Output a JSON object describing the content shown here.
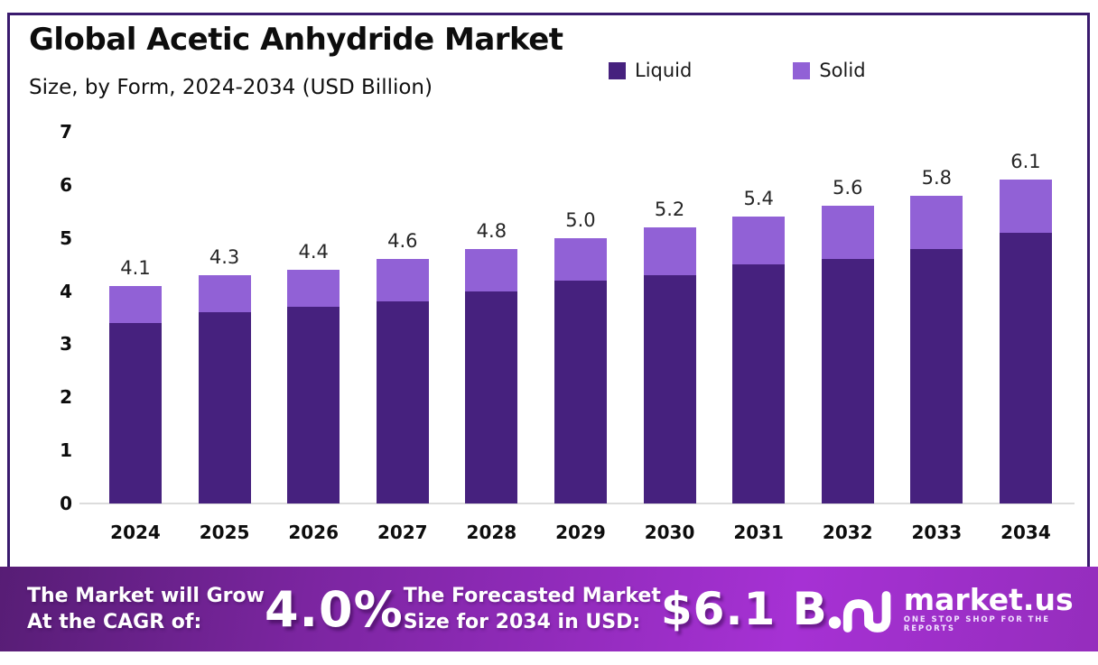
{
  "page": {
    "background": "#ffffff",
    "frame_border_color": "#3a1a6e"
  },
  "header": {
    "title": "Global Acetic Anhydride Market",
    "subtitle": "Size, by Form, 2024-2034 (USD Billion)"
  },
  "legend": [
    {
      "label": "Liquid",
      "color": "#46217e"
    },
    {
      "label": "Solid",
      "color": "#9161d6"
    }
  ],
  "chart_data": {
    "type": "bar",
    "stacked": true,
    "title": "Global Acetic Anhydride Market Size, by Form, 2024-2034 (USD Billion)",
    "xlabel": "",
    "ylabel": "USD Billion",
    "categories": [
      "2024",
      "2025",
      "2026",
      "2027",
      "2028",
      "2029",
      "2030",
      "2031",
      "2032",
      "2033",
      "2034"
    ],
    "series": [
      {
        "name": "Liquid",
        "color": "#46217e",
        "values": [
          3.4,
          3.6,
          3.7,
          3.8,
          4.0,
          4.2,
          4.3,
          4.5,
          4.6,
          4.8,
          5.1
        ]
      },
      {
        "name": "Solid",
        "color": "#9161d6",
        "values": [
          0.7,
          0.7,
          0.7,
          0.8,
          0.8,
          0.8,
          0.9,
          0.9,
          1.0,
          1.0,
          1.0
        ]
      }
    ],
    "totals": [
      4.1,
      4.3,
      4.4,
      4.6,
      4.8,
      5.0,
      5.2,
      5.4,
      5.6,
      5.8,
      6.1
    ],
    "total_labels": [
      "4.1",
      "4.3",
      "4.4",
      "4.6",
      "4.8",
      "5.0",
      "5.2",
      "5.4",
      "5.6",
      "5.8",
      "6.1"
    ],
    "ylim": [
      0,
      7
    ],
    "yticks": [
      0,
      1,
      2,
      3,
      4,
      5,
      6,
      7
    ],
    "grid": false,
    "legend_position": "top-right"
  },
  "banner": {
    "cagr_text_line1": "The Market will Grow",
    "cagr_text_line2": "At the CAGR of:",
    "cagr_value": "4.0%",
    "forecast_text_line1": "The Forecasted Market",
    "forecast_text_line2": "Size for 2034 in USD:",
    "forecast_value": "$6.1 B",
    "logo_text": "market.us",
    "logo_tagline": "ONE STOP SHOP FOR THE REPORTS",
    "gradient": [
      "#571d75",
      "#7b25a0",
      "#a631d4",
      "#952dbd"
    ]
  }
}
